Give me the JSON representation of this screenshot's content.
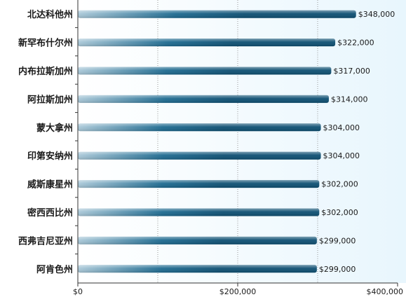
{
  "chart_data": {
    "type": "bar",
    "orientation": "horizontal",
    "categories": [
      "北达科他州",
      "新罕布什尔州",
      "内布拉斯加州",
      "阿拉斯加州",
      "蒙大拿州",
      "印第安纳州",
      "威斯康星州",
      "密西西比州",
      "西弗吉尼亚州",
      "阿肯色州"
    ],
    "values": [
      348000,
      322000,
      317000,
      314000,
      304000,
      304000,
      302000,
      302000,
      299000,
      299000
    ],
    "value_labels": [
      "$348,000",
      "$322,000",
      "$317,000",
      "$314,000",
      "$304,000",
      "$304,000",
      "$302,000",
      "$302,000",
      "$299,000",
      "$299,000"
    ],
    "xlim": [
      0,
      400000
    ],
    "x_ticks": [
      0,
      200000,
      400000
    ],
    "x_tick_labels": [
      "$0",
      "$200,000",
      "$400,000"
    ],
    "grid": "vertical dotted",
    "colors": {
      "bar_dark": "#0d4f72",
      "bar_light": "#a9c8d8",
      "plot_bg_right": "#e8f6fd"
    }
  }
}
